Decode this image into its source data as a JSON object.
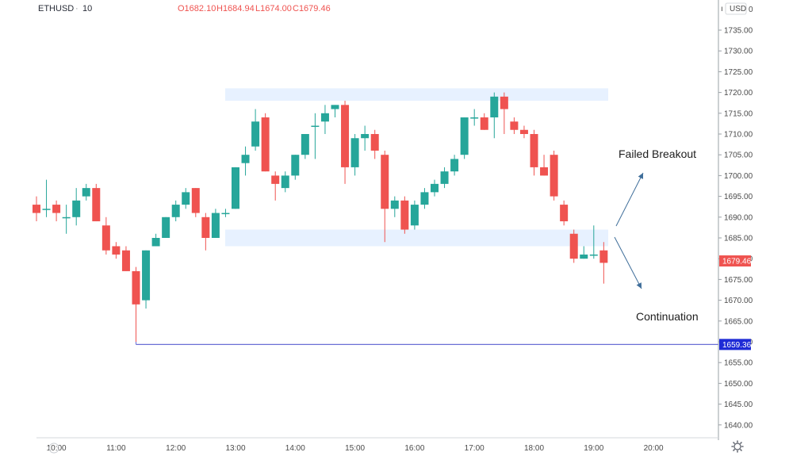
{
  "header": {
    "symbol": "ETHUSD",
    "interval": "10",
    "ohlc": {
      "open": "O1682.10",
      "high": "H1684.94",
      "low": "L1674.00",
      "close": "C1679.46"
    },
    "currency": "USD",
    "currency_extra": "0"
  },
  "colors": {
    "up": "#26a69a",
    "down": "#ef5350",
    "zone": "#e3efff",
    "level_line": "#6b6fd6",
    "level_tag": "#1e2bd6",
    "last_tag": "#ef5350",
    "arrow": "#3f6e9a"
  },
  "icons": {
    "settings": "gear-icon"
  },
  "chart_data": {
    "type": "candlestick",
    "title": "",
    "y_axis": {
      "range": [
        1636,
        1740
      ],
      "ticks": [
        1735,
        1730,
        1725,
        1720,
        1715,
        1710,
        1705,
        1700,
        1695,
        1690,
        1685,
        1680,
        1675,
        1670,
        1665,
        1660,
        1655,
        1650,
        1645,
        1640
      ],
      "tick_labels": [
        "1735.00",
        "1730.00",
        "1725.00",
        "1720.00",
        "1715.00",
        "1710.00",
        "1705.00",
        "1700.00",
        "1695.00",
        "1690.00",
        "1685.00",
        "1680.00",
        "1675.00",
        "1670.00",
        "1665.00",
        "1660.00",
        "1655.00",
        "1650.00",
        "1645.00",
        "1640.00"
      ],
      "side": "right"
    },
    "x_axis": {
      "tick_labels": [
        "10:00",
        "11:00",
        "12:00",
        "13:00",
        "14:00",
        "15:00",
        "16:00",
        "17:00",
        "18:00",
        "19:00",
        "20:00"
      ]
    },
    "grid": false,
    "candles": [
      {
        "t": "09:40",
        "o": 1693,
        "h": 1695,
        "l": 1689,
        "c": 1691
      },
      {
        "t": "09:50",
        "o": 1692,
        "h": 1699,
        "l": 1690,
        "c": 1692
      },
      {
        "t": "10:00",
        "o": 1693,
        "h": 1694,
        "l": 1689,
        "c": 1691
      },
      {
        "t": "10:10",
        "o": 1690,
        "h": 1693,
        "l": 1686,
        "c": 1690
      },
      {
        "t": "10:20",
        "o": 1690,
        "h": 1697,
        "l": 1688,
        "c": 1694
      },
      {
        "t": "10:30",
        "o": 1695,
        "h": 1698,
        "l": 1694,
        "c": 1697
      },
      {
        "t": "10:40",
        "o": 1697,
        "h": 1698,
        "l": 1689,
        "c": 1689
      },
      {
        "t": "10:50",
        "o": 1688,
        "h": 1690,
        "l": 1681,
        "c": 1682
      },
      {
        "t": "11:00",
        "o": 1683,
        "h": 1684,
        "l": 1680,
        "c": 1681
      },
      {
        "t": "11:10",
        "o": 1682,
        "h": 1683,
        "l": 1677,
        "c": 1677
      },
      {
        "t": "11:20",
        "o": 1677,
        "h": 1678,
        "l": 1660,
        "c": 1669
      },
      {
        "t": "11:30",
        "o": 1670,
        "h": 1682,
        "l": 1668,
        "c": 1682
      },
      {
        "t": "11:40",
        "o": 1683,
        "h": 1686,
        "l": 1683,
        "c": 1685
      },
      {
        "t": "11:50",
        "o": 1685,
        "h": 1690,
        "l": 1685,
        "c": 1690
      },
      {
        "t": "12:00",
        "o": 1690,
        "h": 1694,
        "l": 1689,
        "c": 1693
      },
      {
        "t": "12:10",
        "o": 1693,
        "h": 1697,
        "l": 1692,
        "c": 1696
      },
      {
        "t": "12:20",
        "o": 1697,
        "h": 1697,
        "l": 1690,
        "c": 1691
      },
      {
        "t": "12:30",
        "o": 1690,
        "h": 1691,
        "l": 1682,
        "c": 1685
      },
      {
        "t": "12:40",
        "o": 1685,
        "h": 1692,
        "l": 1685,
        "c": 1691
      },
      {
        "t": "12:50",
        "o": 1691,
        "h": 1692,
        "l": 1690,
        "c": 1691
      },
      {
        "t": "13:00",
        "o": 1692,
        "h": 1702,
        "l": 1692,
        "c": 1702
      },
      {
        "t": "13:10",
        "o": 1703,
        "h": 1707,
        "l": 1700,
        "c": 1705
      },
      {
        "t": "13:20",
        "o": 1707,
        "h": 1716,
        "l": 1706,
        "c": 1713
      },
      {
        "t": "13:30",
        "o": 1714,
        "h": 1715,
        "l": 1701,
        "c": 1701
      },
      {
        "t": "13:40",
        "o": 1700,
        "h": 1701,
        "l": 1694,
        "c": 1698
      },
      {
        "t": "13:50",
        "o": 1697,
        "h": 1701,
        "l": 1696,
        "c": 1700
      },
      {
        "t": "14:00",
        "o": 1700,
        "h": 1705,
        "l": 1699,
        "c": 1705
      },
      {
        "t": "14:10",
        "o": 1705,
        "h": 1710,
        "l": 1704,
        "c": 1710
      },
      {
        "t": "14:20",
        "o": 1712,
        "h": 1715,
        "l": 1704,
        "c": 1712
      },
      {
        "t": "14:30",
        "o": 1713,
        "h": 1717,
        "l": 1710,
        "c": 1715
      },
      {
        "t": "14:40",
        "o": 1716,
        "h": 1717,
        "l": 1714,
        "c": 1717
      },
      {
        "t": "14:50",
        "o": 1717,
        "h": 1718,
        "l": 1698,
        "c": 1702
      },
      {
        "t": "15:00",
        "o": 1702,
        "h": 1710,
        "l": 1700,
        "c": 1709
      },
      {
        "t": "15:10",
        "o": 1709,
        "h": 1712,
        "l": 1706,
        "c": 1710
      },
      {
        "t": "15:20",
        "o": 1710,
        "h": 1711,
        "l": 1704,
        "c": 1706
      },
      {
        "t": "15:30",
        "o": 1705,
        "h": 1706,
        "l": 1684,
        "c": 1692
      },
      {
        "t": "15:40",
        "o": 1692,
        "h": 1695,
        "l": 1690,
        "c": 1694
      },
      {
        "t": "15:50",
        "o": 1694,
        "h": 1695,
        "l": 1686,
        "c": 1687
      },
      {
        "t": "16:00",
        "o": 1688,
        "h": 1694,
        "l": 1687,
        "c": 1693
      },
      {
        "t": "16:10",
        "o": 1693,
        "h": 1697,
        "l": 1692,
        "c": 1696
      },
      {
        "t": "16:20",
        "o": 1696,
        "h": 1699,
        "l": 1695,
        "c": 1698
      },
      {
        "t": "16:30",
        "o": 1698,
        "h": 1702,
        "l": 1697,
        "c": 1701
      },
      {
        "t": "16:40",
        "o": 1701,
        "h": 1705,
        "l": 1700,
        "c": 1704
      },
      {
        "t": "16:50",
        "o": 1705,
        "h": 1714,
        "l": 1704,
        "c": 1714
      },
      {
        "t": "17:00",
        "o": 1714,
        "h": 1716,
        "l": 1712,
        "c": 1714
      },
      {
        "t": "17:10",
        "o": 1714,
        "h": 1715,
        "l": 1711,
        "c": 1711
      },
      {
        "t": "17:20",
        "o": 1714,
        "h": 1720,
        "l": 1709,
        "c": 1719
      },
      {
        "t": "17:30",
        "o": 1719,
        "h": 1720,
        "l": 1710,
        "c": 1716
      },
      {
        "t": "17:40",
        "o": 1713,
        "h": 1714,
        "l": 1710,
        "c": 1711
      },
      {
        "t": "17:50",
        "o": 1711,
        "h": 1712,
        "l": 1709,
        "c": 1710
      },
      {
        "t": "18:00",
        "o": 1710,
        "h": 1711,
        "l": 1700,
        "c": 1702
      },
      {
        "t": "18:10",
        "o": 1702,
        "h": 1705,
        "l": 1700,
        "c": 1700
      },
      {
        "t": "18:20",
        "o": 1705,
        "h": 1706,
        "l": 1694,
        "c": 1695
      },
      {
        "t": "18:30",
        "o": 1693,
        "h": 1694,
        "l": 1688,
        "c": 1689
      },
      {
        "t": "18:40",
        "o": 1686,
        "h": 1687,
        "l": 1679,
        "c": 1680
      },
      {
        "t": "18:50",
        "o": 1680,
        "h": 1683,
        "l": 1680,
        "c": 1681
      },
      {
        "t": "19:00",
        "o": 1681,
        "h": 1688,
        "l": 1680,
        "c": 1681
      },
      {
        "t": "19:10",
        "o": 1682,
        "h": 1684,
        "l": 1674,
        "c": 1679
      }
    ],
    "zones": [
      {
        "name": "resistance",
        "from": 1718,
        "to": 1721
      },
      {
        "name": "support",
        "from": 1683,
        "to": 1687
      }
    ],
    "levels": [
      {
        "price": 1659.36,
        "label": "1659.36",
        "from": "11:20"
      }
    ],
    "last_price": {
      "price": 1679.46,
      "label": "1679.46"
    },
    "annotations": {
      "breakout": "Failed Breakout",
      "continuation": "Continuation"
    }
  }
}
